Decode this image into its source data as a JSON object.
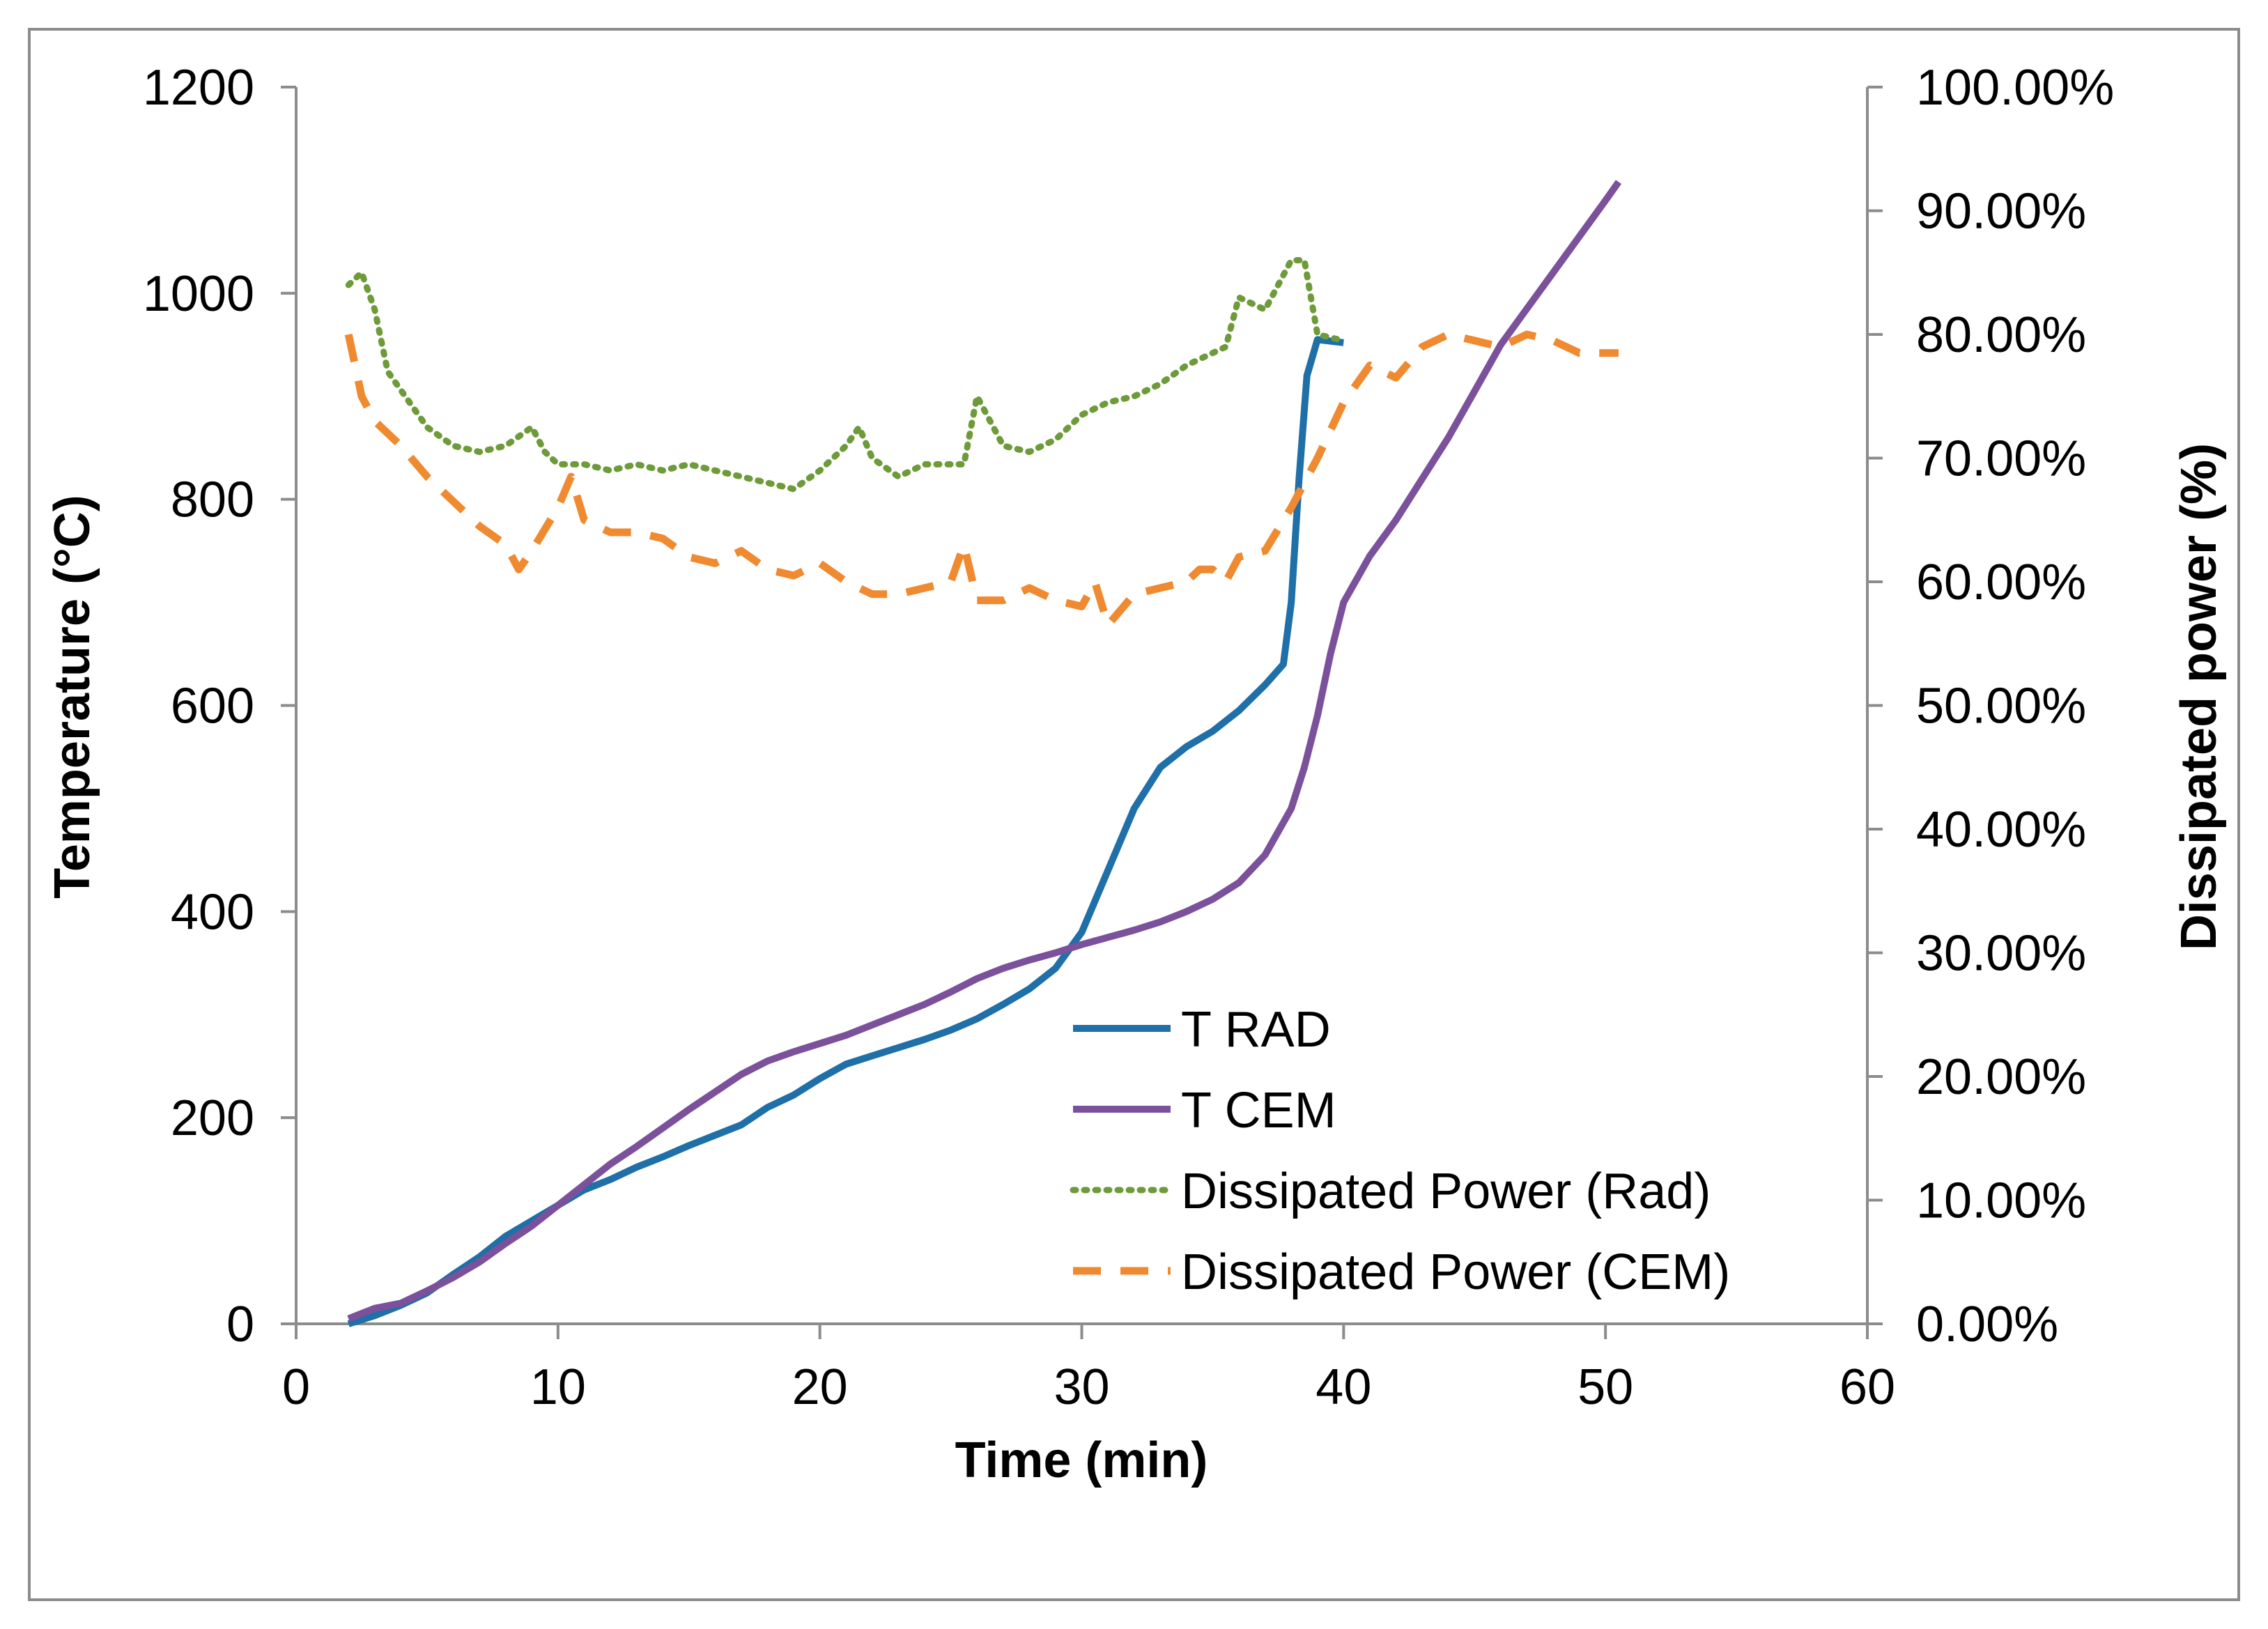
{
  "chart_data": {
    "type": "line",
    "title": "",
    "xlabel": "Time (min)",
    "ylabel": "Temperature (°C)",
    "y2label": "Dissipated power (%)",
    "xlim": [
      0,
      60
    ],
    "ylim": [
      0,
      1200
    ],
    "y2lim": [
      0,
      1
    ],
    "x_ticks": [
      "0",
      "10",
      "20",
      "30",
      "40",
      "50",
      "60"
    ],
    "y_ticks": [
      "0",
      "200",
      "400",
      "600",
      "800",
      "1000",
      "1200"
    ],
    "y2_ticks": [
      "0.00%",
      "10.00%",
      "20.00%",
      "30.00%",
      "40.00%",
      "50.00%",
      "60.00%",
      "70.00%",
      "80.00%",
      "90.00%",
      "100.00%"
    ],
    "grid": false,
    "legend_position": "center-right",
    "series": [
      {
        "name": "T RAD",
        "axis": "left",
        "color": "#1f6fa8",
        "style": "solid",
        "points": [
          [
            2,
            0
          ],
          [
            3,
            8
          ],
          [
            4,
            18
          ],
          [
            5,
            30
          ],
          [
            6,
            48
          ],
          [
            7,
            65
          ],
          [
            8,
            85
          ],
          [
            9,
            100
          ],
          [
            10,
            115
          ],
          [
            11,
            130
          ],
          [
            12,
            140
          ],
          [
            13,
            152
          ],
          [
            14,
            162
          ],
          [
            15,
            173
          ],
          [
            16,
            183
          ],
          [
            17,
            193
          ],
          [
            18,
            210
          ],
          [
            19,
            222
          ],
          [
            20,
            238
          ],
          [
            21,
            252
          ],
          [
            22,
            260
          ],
          [
            23,
            268
          ],
          [
            24,
            276
          ],
          [
            25,
            285
          ],
          [
            26,
            296
          ],
          [
            27,
            310
          ],
          [
            28,
            325
          ],
          [
            29,
            345
          ],
          [
            30,
            380
          ],
          [
            31,
            440
          ],
          [
            32,
            500
          ],
          [
            33,
            540
          ],
          [
            34,
            560
          ],
          [
            35,
            575
          ],
          [
            36,
            595
          ],
          [
            37,
            620
          ],
          [
            37.7,
            640
          ],
          [
            38,
            700
          ],
          [
            38.3,
            820
          ],
          [
            38.6,
            920
          ],
          [
            39,
            955
          ],
          [
            40,
            952
          ]
        ]
      },
      {
        "name": "T CEM",
        "axis": "left",
        "color": "#7b519c",
        "style": "solid",
        "points": [
          [
            2,
            5
          ],
          [
            3,
            15
          ],
          [
            4,
            20
          ],
          [
            5,
            32
          ],
          [
            6,
            45
          ],
          [
            7,
            60
          ],
          [
            8,
            78
          ],
          [
            9,
            95
          ],
          [
            10,
            115
          ],
          [
            11,
            135
          ],
          [
            12,
            155
          ],
          [
            13,
            172
          ],
          [
            14,
            190
          ],
          [
            15,
            208
          ],
          [
            16,
            225
          ],
          [
            17,
            242
          ],
          [
            18,
            255
          ],
          [
            19,
            264
          ],
          [
            20,
            272
          ],
          [
            21,
            280
          ],
          [
            22,
            290
          ],
          [
            23,
            300
          ],
          [
            24,
            310
          ],
          [
            25,
            322
          ],
          [
            26,
            335
          ],
          [
            27,
            345
          ],
          [
            28,
            353
          ],
          [
            29,
            360
          ],
          [
            30,
            368
          ],
          [
            31,
            375
          ],
          [
            32,
            382
          ],
          [
            33,
            390
          ],
          [
            34,
            400
          ],
          [
            35,
            412
          ],
          [
            36,
            428
          ],
          [
            37,
            455
          ],
          [
            38,
            500
          ],
          [
            38.5,
            540
          ],
          [
            39,
            590
          ],
          [
            39.5,
            650
          ],
          [
            40,
            700
          ],
          [
            41,
            745
          ],
          [
            42,
            780
          ],
          [
            43,
            820
          ],
          [
            44,
            860
          ],
          [
            45,
            905
          ],
          [
            46,
            950
          ],
          [
            47,
            985
          ],
          [
            48,
            1020
          ],
          [
            49,
            1055
          ],
          [
            50,
            1090
          ],
          [
            50.5,
            1108
          ]
        ]
      },
      {
        "name": "Dissipated Power (Rad)",
        "axis": "right",
        "color": "#6e9b3a",
        "style": "dotted",
        "points": [
          [
            2,
            0.84
          ],
          [
            2.5,
            0.85
          ],
          [
            3,
            0.82
          ],
          [
            3.5,
            0.77
          ],
          [
            4,
            0.755
          ],
          [
            5,
            0.725
          ],
          [
            6,
            0.71
          ],
          [
            7,
            0.705
          ],
          [
            8,
            0.71
          ],
          [
            9,
            0.725
          ],
          [
            9.5,
            0.705
          ],
          [
            10,
            0.695
          ],
          [
            11,
            0.695
          ],
          [
            12,
            0.69
          ],
          [
            13,
            0.695
          ],
          [
            14,
            0.69
          ],
          [
            15,
            0.695
          ],
          [
            16,
            0.69
          ],
          [
            17,
            0.685
          ],
          [
            18,
            0.68
          ],
          [
            19,
            0.675
          ],
          [
            20,
            0.69
          ],
          [
            21,
            0.71
          ],
          [
            21.5,
            0.725
          ],
          [
            22,
            0.7
          ],
          [
            23,
            0.685
          ],
          [
            24,
            0.695
          ],
          [
            25,
            0.695
          ],
          [
            25.5,
            0.695
          ],
          [
            26,
            0.75
          ],
          [
            27,
            0.71
          ],
          [
            28,
            0.705
          ],
          [
            29,
            0.715
          ],
          [
            30,
            0.735
          ],
          [
            31,
            0.745
          ],
          [
            32,
            0.75
          ],
          [
            33,
            0.76
          ],
          [
            34,
            0.775
          ],
          [
            35,
            0.785
          ],
          [
            35.5,
            0.79
          ],
          [
            36,
            0.83
          ],
          [
            37,
            0.82
          ],
          [
            37.5,
            0.84
          ],
          [
            38,
            0.86
          ],
          [
            38.5,
            0.86
          ],
          [
            39,
            0.8
          ],
          [
            40,
            0.795
          ]
        ]
      },
      {
        "name": "Dissipated Power (CEM)",
        "axis": "right",
        "color": "#f08a30",
        "style": "dashed",
        "points": [
          [
            2,
            0.8
          ],
          [
            2.5,
            0.75
          ],
          [
            3,
            0.73
          ],
          [
            4,
            0.71
          ],
          [
            5,
            0.685
          ],
          [
            6,
            0.665
          ],
          [
            7,
            0.645
          ],
          [
            8,
            0.63
          ],
          [
            8.5,
            0.61
          ],
          [
            9,
            0.625
          ],
          [
            10,
            0.66
          ],
          [
            10.5,
            0.685
          ],
          [
            11,
            0.65
          ],
          [
            12,
            0.64
          ],
          [
            13,
            0.64
          ],
          [
            14,
            0.635
          ],
          [
            15,
            0.62
          ],
          [
            16,
            0.615
          ],
          [
            17,
            0.625
          ],
          [
            18,
            0.61
          ],
          [
            19,
            0.605
          ],
          [
            20,
            0.615
          ],
          [
            21,
            0.6
          ],
          [
            22,
            0.59
          ],
          [
            23,
            0.59
          ],
          [
            24,
            0.595
          ],
          [
            25,
            0.6
          ],
          [
            25.5,
            0.63
          ],
          [
            26,
            0.585
          ],
          [
            27,
            0.585
          ],
          [
            28,
            0.595
          ],
          [
            29,
            0.585
          ],
          [
            30,
            0.58
          ],
          [
            30.5,
            0.6
          ],
          [
            31,
            0.565
          ],
          [
            32,
            0.59
          ],
          [
            33,
            0.595
          ],
          [
            34,
            0.6
          ],
          [
            34.5,
            0.61
          ],
          [
            35,
            0.61
          ],
          [
            35.5,
            0.6
          ],
          [
            36,
            0.62
          ],
          [
            37,
            0.625
          ],
          [
            38,
            0.66
          ],
          [
            39,
            0.7
          ],
          [
            40,
            0.745
          ],
          [
            41,
            0.775
          ],
          [
            42,
            0.765
          ],
          [
            43,
            0.79
          ],
          [
            44,
            0.8
          ],
          [
            45,
            0.795
          ],
          [
            46,
            0.79
          ],
          [
            47,
            0.8
          ],
          [
            48,
            0.795
          ],
          [
            49,
            0.785
          ],
          [
            50,
            0.785
          ],
          [
            50.5,
            0.785
          ]
        ]
      }
    ]
  }
}
